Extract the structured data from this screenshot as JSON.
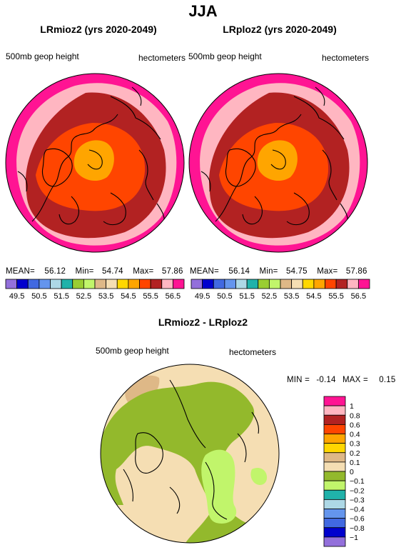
{
  "page": {
    "title": "JJA"
  },
  "panels": [
    {
      "title": "LRmioz2 (yrs 2020-2049)",
      "var_label": "500mb geop height",
      "units": "hectometers",
      "stats": {
        "mean_label": "MEAN=",
        "mean": "56.12",
        "min_label": "Min=",
        "min": "54.74",
        "max_label": "Max=",
        "max": "57.86"
      }
    },
    {
      "title": "LRploz2 (yrs 2020-2049)",
      "var_label": "500mb geop height",
      "units": "hectometers",
      "stats": {
        "mean_label": "MEAN=",
        "mean": "56.14",
        "min_label": "Min=",
        "min": "54.75",
        "max_label": "Max=",
        "max": "57.86"
      }
    }
  ],
  "top_colorbar": {
    "colors": [
      "#9370db",
      "#0000cd",
      "#4169e1",
      "#6495ed",
      "#add8e6",
      "#20b2aa",
      "#9acd32",
      "#c1f56b",
      "#deb887",
      "#f5deb3",
      "#ffd700",
      "#ffa500",
      "#ff4500",
      "#b22222",
      "#ffb6c1",
      "#ff1493"
    ],
    "labels": [
      "49.5",
      "50.5",
      "51.5",
      "52.5",
      "53.5",
      "54.5",
      "55.5",
      "56.5"
    ]
  },
  "diff": {
    "title": "LRmioz2 - LRploz2",
    "var_label": "500mb geop height",
    "units": "hectometers",
    "min_label": "MIN =",
    "min": "-0.14",
    "max_label": "MAX =",
    "max": "0.15"
  },
  "diff_colorbar": {
    "colors": [
      "#ff1493",
      "#ffb6c1",
      "#b22222",
      "#ff4500",
      "#ffa500",
      "#ffd700",
      "#deb887",
      "#f5deb3",
      "#93b92c",
      "#c1f56b",
      "#20b2aa",
      "#add8e6",
      "#6495ed",
      "#4169e1",
      "#0000cd",
      "#9370db"
    ],
    "labels": [
      "1",
      "0.8",
      "0.6",
      "0.4",
      "0.3",
      "0.2",
      "0.1",
      "0",
      "−0.1",
      "−0.2",
      "−0.3",
      "−0.4",
      "−0.6",
      "−0.8",
      "−1"
    ]
  },
  "map_colors": {
    "ring1": "#ff1493",
    "ring2": "#ffb6c1",
    "ring3": "#b22222",
    "ring4": "#ff4500",
    "ring5": "#ffa500",
    "diff_base": "#f5deb3",
    "diff_neg": "#93b92c",
    "diff_neg2": "#c1f56b",
    "diff_pos": "#deb887"
  }
}
